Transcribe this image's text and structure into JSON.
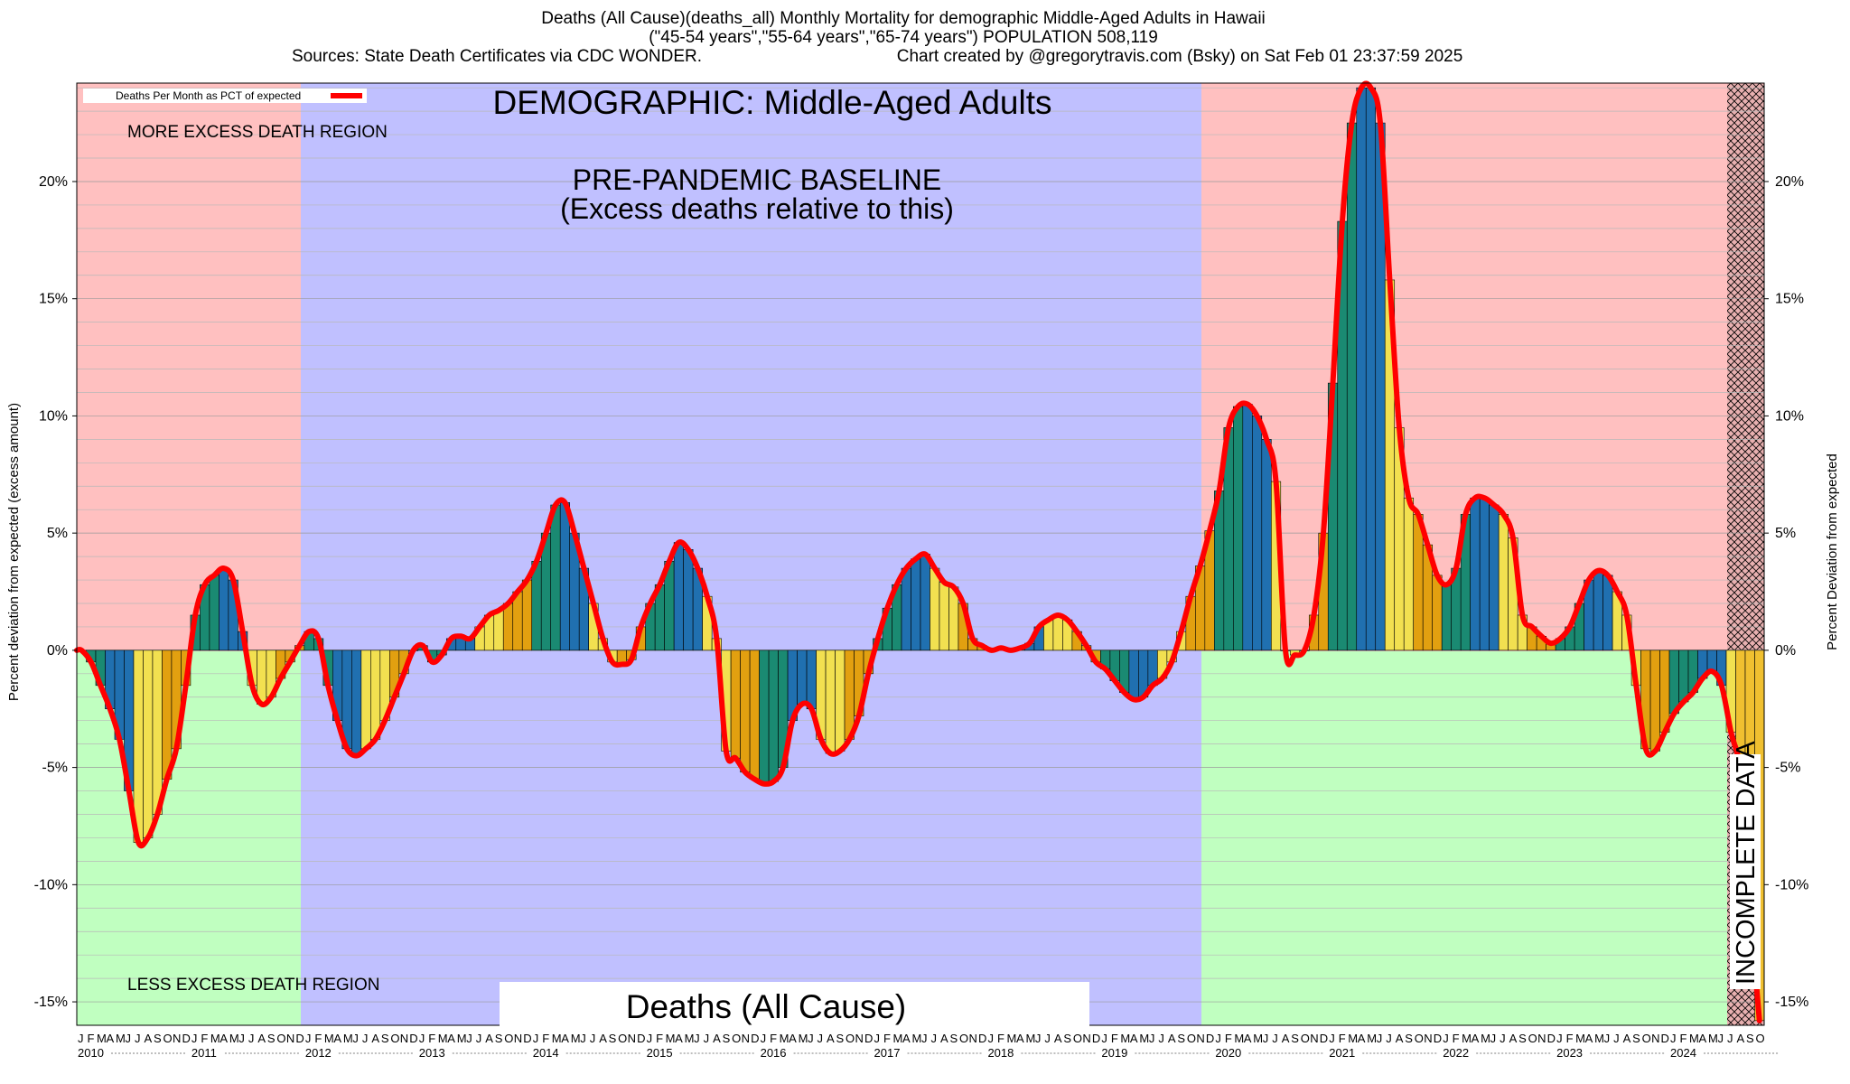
{
  "chart_data": {
    "type": "bar",
    "title": [
      "Deaths (All Cause)(deaths_all) Monthly Mortality for demographic Middle-Aged Adults in Hawaii",
      "(\"45-54 years\",\"55-64 years\",\"65-74 years\") POPULATION 508,119"
    ],
    "sources": "Sources: State Death Certificates via CDC WONDER.",
    "credit": "Chart created by @gregorytravis.com (Bsky) on Sat Feb 01 23:37:59 2025",
    "ylabel_left": "Percent deviation from expected (excess amount)",
    "ylabel_right": "Percent Deviation from expected",
    "ylim": [
      -16,
      24.2
    ],
    "yticks": [
      20,
      15,
      10,
      5,
      0,
      -5,
      -10,
      -15
    ],
    "legend": "Deaths Per Month as PCT of expected",
    "legend_position": "top-left",
    "x_start": "2010-01",
    "month_letters": [
      "J",
      "F",
      "M",
      "A",
      "M",
      "J",
      "J",
      "A",
      "S",
      "O",
      "N",
      "D"
    ],
    "years": [
      "2010",
      "2011",
      "2012",
      "2013",
      "2014",
      "2015",
      "2016",
      "2017",
      "2018",
      "2019",
      "2020",
      "2021",
      "2022",
      "2023",
      "2024"
    ],
    "series": [
      {
        "name": "Deaths Per Month as PCT of expected",
        "values": [
          0.0,
          -0.5,
          -1.5,
          -2.5,
          -3.8,
          -6.0,
          -8.2,
          -8.0,
          -7.0,
          -5.5,
          -4.2,
          -1.5,
          1.5,
          2.8,
          3.2,
          3.5,
          3.0,
          0.8,
          -1.5,
          -2.3,
          -2.0,
          -1.2,
          -0.5,
          0.2,
          0.8,
          0.5,
          -1.5,
          -3.0,
          -4.2,
          -4.5,
          -4.2,
          -3.8,
          -3.0,
          -2.0,
          -1.0,
          0.0,
          0.2,
          -0.5,
          -0.2,
          0.5,
          0.6,
          0.5,
          1.0,
          1.5,
          1.7,
          2.0,
          2.5,
          3.0,
          3.8,
          5.0,
          6.2,
          6.3,
          5.0,
          3.5,
          2.0,
          0.5,
          -0.5,
          -0.6,
          -0.4,
          1.0,
          2.0,
          2.8,
          3.8,
          4.6,
          4.3,
          3.5,
          2.3,
          0.5,
          -4.3,
          -4.6,
          -5.2,
          -5.5,
          -5.7,
          -5.6,
          -5.0,
          -3.0,
          -2.3,
          -2.5,
          -3.8,
          -4.4,
          -4.3,
          -3.8,
          -2.8,
          -1.0,
          0.5,
          1.8,
          2.8,
          3.5,
          3.9,
          4.1,
          3.5,
          2.9,
          2.7,
          2.0,
          0.5,
          0.2,
          0.0,
          0.1,
          0.0,
          0.1,
          0.3,
          1.0,
          1.3,
          1.5,
          1.3,
          0.8,
          0.2,
          -0.5,
          -0.8,
          -1.3,
          -1.8,
          -2.1,
          -2.0,
          -1.5,
          -1.2,
          -0.5,
          0.8,
          2.3,
          3.6,
          5.1,
          6.8,
          9.5,
          10.4,
          10.5,
          10.0,
          9.0,
          7.2,
          0.0,
          -0.2,
          0.0,
          1.5,
          5.0,
          11.4,
          18.3,
          22.5,
          24.0,
          24.0,
          22.5,
          15.8,
          9.5,
          6.5,
          5.8,
          4.5,
          3.2,
          2.8,
          3.5,
          5.8,
          6.5,
          6.5,
          6.2,
          5.8,
          4.8,
          1.5,
          1.0,
          0.6,
          0.3,
          0.5,
          1.0,
          2.0,
          3.0,
          3.4,
          3.2,
          2.5,
          1.5,
          -1.5,
          -4.2,
          -4.3,
          -3.5,
          -2.7,
          -2.2,
          -1.8,
          -1.2,
          -0.9,
          -1.5,
          -3.5,
          -5.3,
          -11.0,
          -15.8
        ]
      }
    ],
    "regions": [
      {
        "label": "MORE EXCESS DEATH REGION",
        "color": "#ffc0c0"
      },
      {
        "label": "LESS EXCESS DEATH REGION",
        "color": "#c0ffc0"
      },
      {
        "label_lines": [
          "PRE-PANDEMIC BASELINE",
          "(Excess deaths relative to this)"
        ],
        "color": "#c0c0ff"
      },
      {
        "label": "INCOMPLETE DATA"
      }
    ],
    "demographic_label": "DEMOGRAPHIC: Middle-Aged Adults",
    "footer_label": "Deaths (All Cause)",
    "bar_colors": [
      "#1a8a72",
      "#2070b0",
      "#f2e050",
      "#e2a010"
    ],
    "line_color": "#ff0000"
  }
}
